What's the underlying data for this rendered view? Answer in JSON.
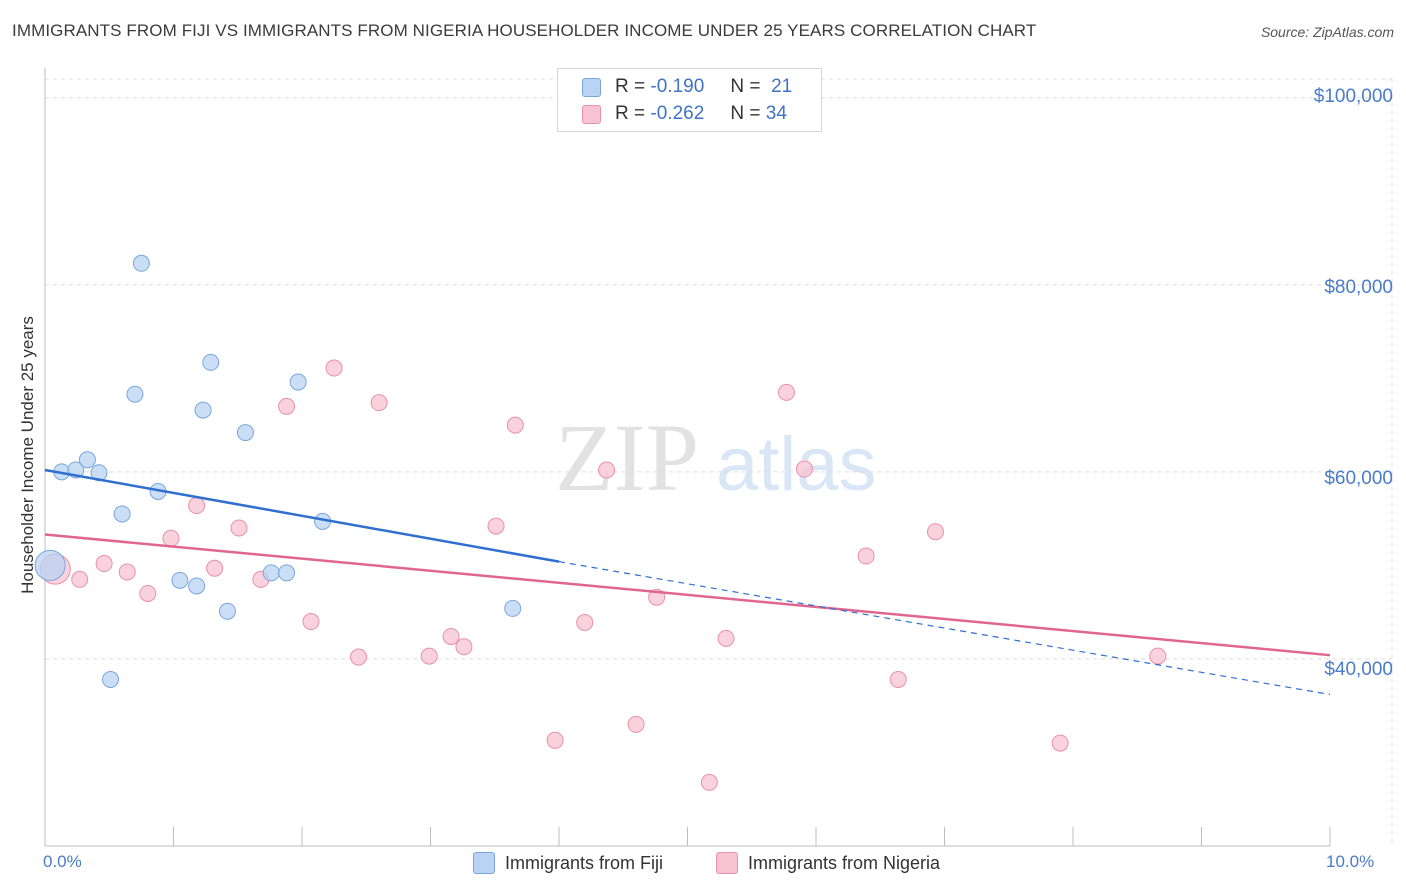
{
  "title": "IMMIGRANTS FROM FIJI VS IMMIGRANTS FROM NIGERIA HOUSEHOLDER INCOME UNDER 25 YEARS CORRELATION CHART",
  "source": "Source: ZipAtlas.com",
  "watermark": {
    "zip": "ZIP",
    "atlas": "atlas"
  },
  "stats": {
    "fiji": {
      "r_label": "R =",
      "r": "-0.190",
      "n_label": "N =",
      "n": "21"
    },
    "nigeria": {
      "r_label": "R =",
      "r": "-0.262",
      "n_label": "N =",
      "n": "34"
    }
  },
  "legend": {
    "fiji": "Immigrants from Fiji",
    "nigeria": "Immigrants from Nigeria"
  },
  "colors": {
    "fiji_fill": "#b8d3f3",
    "fiji_stroke": "#7aa6dd",
    "fiji_line": "#2f6fd0",
    "nigeria_fill": "#f7c3d2",
    "nigeria_stroke": "#e891ab",
    "nigeria_line": "#e0668f",
    "axis_text": "#4a7cc9",
    "grid": "#dddddd"
  },
  "chart_data": {
    "type": "scatter",
    "title": "IMMIGRANTS FROM FIJI VS IMMIGRANTS FROM NIGERIA HOUSEHOLDER INCOME UNDER 25 YEARS CORRELATION CHART",
    "xlabel": "",
    "ylabel": "Householder Income Under 25 years",
    "xlim": [
      0,
      10
    ],
    "ylim": [
      20000,
      102000
    ],
    "x_tick_labels": [
      {
        "value": 0,
        "label": "0.0%"
      },
      {
        "value": 10,
        "label": "10.0%"
      }
    ],
    "y_ticks": [
      {
        "value": 100000,
        "label": "$100,000"
      },
      {
        "value": 80000,
        "label": "$80,000"
      },
      {
        "value": 60000,
        "label": "$60,000"
      },
      {
        "value": 40000,
        "label": "$40,000"
      }
    ],
    "grid": true,
    "series": [
      {
        "name": "Immigrants from Fiji",
        "points": [
          {
            "x": 0.04,
            "y": 50000,
            "big": true
          },
          {
            "x": 0.13,
            "y": 60000
          },
          {
            "x": 0.24,
            "y": 60200
          },
          {
            "x": 0.33,
            "y": 61300
          },
          {
            "x": 0.42,
            "y": 59900
          },
          {
            "x": 0.6,
            "y": 55500
          },
          {
            "x": 0.51,
            "y": 37800
          },
          {
            "x": 0.7,
            "y": 68300
          },
          {
            "x": 0.75,
            "y": 82300
          },
          {
            "x": 0.88,
            "y": 57900
          },
          {
            "x": 1.05,
            "y": 48400
          },
          {
            "x": 1.18,
            "y": 47800
          },
          {
            "x": 1.23,
            "y": 66600
          },
          {
            "x": 1.29,
            "y": 71700
          },
          {
            "x": 1.42,
            "y": 45100
          },
          {
            "x": 1.56,
            "y": 64200
          },
          {
            "x": 1.76,
            "y": 49200
          },
          {
            "x": 1.88,
            "y": 49200
          },
          {
            "x": 1.97,
            "y": 69600
          },
          {
            "x": 2.16,
            "y": 54700
          },
          {
            "x": 3.64,
            "y": 45400
          }
        ],
        "trend": {
          "x0": 0,
          "y0": 60200,
          "x1": 4.0,
          "y1": 50400,
          "dashed_to_x": 10.0,
          "dashed_to_y": 36200
        }
      },
      {
        "name": "Immigrants from Nigeria",
        "points": [
          {
            "x": 0.08,
            "y": 49600,
            "big": true
          },
          {
            "x": 0.27,
            "y": 48500
          },
          {
            "x": 0.46,
            "y": 50200
          },
          {
            "x": 0.64,
            "y": 49300
          },
          {
            "x": 0.8,
            "y": 47000
          },
          {
            "x": 0.98,
            "y": 52900
          },
          {
            "x": 1.18,
            "y": 56400
          },
          {
            "x": 1.32,
            "y": 49700
          },
          {
            "x": 1.51,
            "y": 54000
          },
          {
            "x": 1.68,
            "y": 48500
          },
          {
            "x": 1.88,
            "y": 67000
          },
          {
            "x": 2.07,
            "y": 44000
          },
          {
            "x": 2.25,
            "y": 71100
          },
          {
            "x": 2.44,
            "y": 40200
          },
          {
            "x": 2.6,
            "y": 67400
          },
          {
            "x": 2.99,
            "y": 40300
          },
          {
            "x": 3.16,
            "y": 42400
          },
          {
            "x": 3.26,
            "y": 41300
          },
          {
            "x": 3.51,
            "y": 54200
          },
          {
            "x": 3.66,
            "y": 65000
          },
          {
            "x": 3.97,
            "y": 31300
          },
          {
            "x": 4.2,
            "y": 43900
          },
          {
            "x": 4.37,
            "y": 60200
          },
          {
            "x": 4.6,
            "y": 33000
          },
          {
            "x": 4.76,
            "y": 46600
          },
          {
            "x": 5.17,
            "y": 26800
          },
          {
            "x": 5.3,
            "y": 42200
          },
          {
            "x": 5.77,
            "y": 68500
          },
          {
            "x": 5.91,
            "y": 60300
          },
          {
            "x": 6.39,
            "y": 51000
          },
          {
            "x": 6.64,
            "y": 37800
          },
          {
            "x": 6.93,
            "y": 53600
          },
          {
            "x": 7.9,
            "y": 31000
          },
          {
            "x": 8.66,
            "y": 40300
          }
        ],
        "trend": {
          "x0": 0,
          "y0": 53300,
          "x1": 10.0,
          "y1": 40400
        }
      }
    ]
  }
}
